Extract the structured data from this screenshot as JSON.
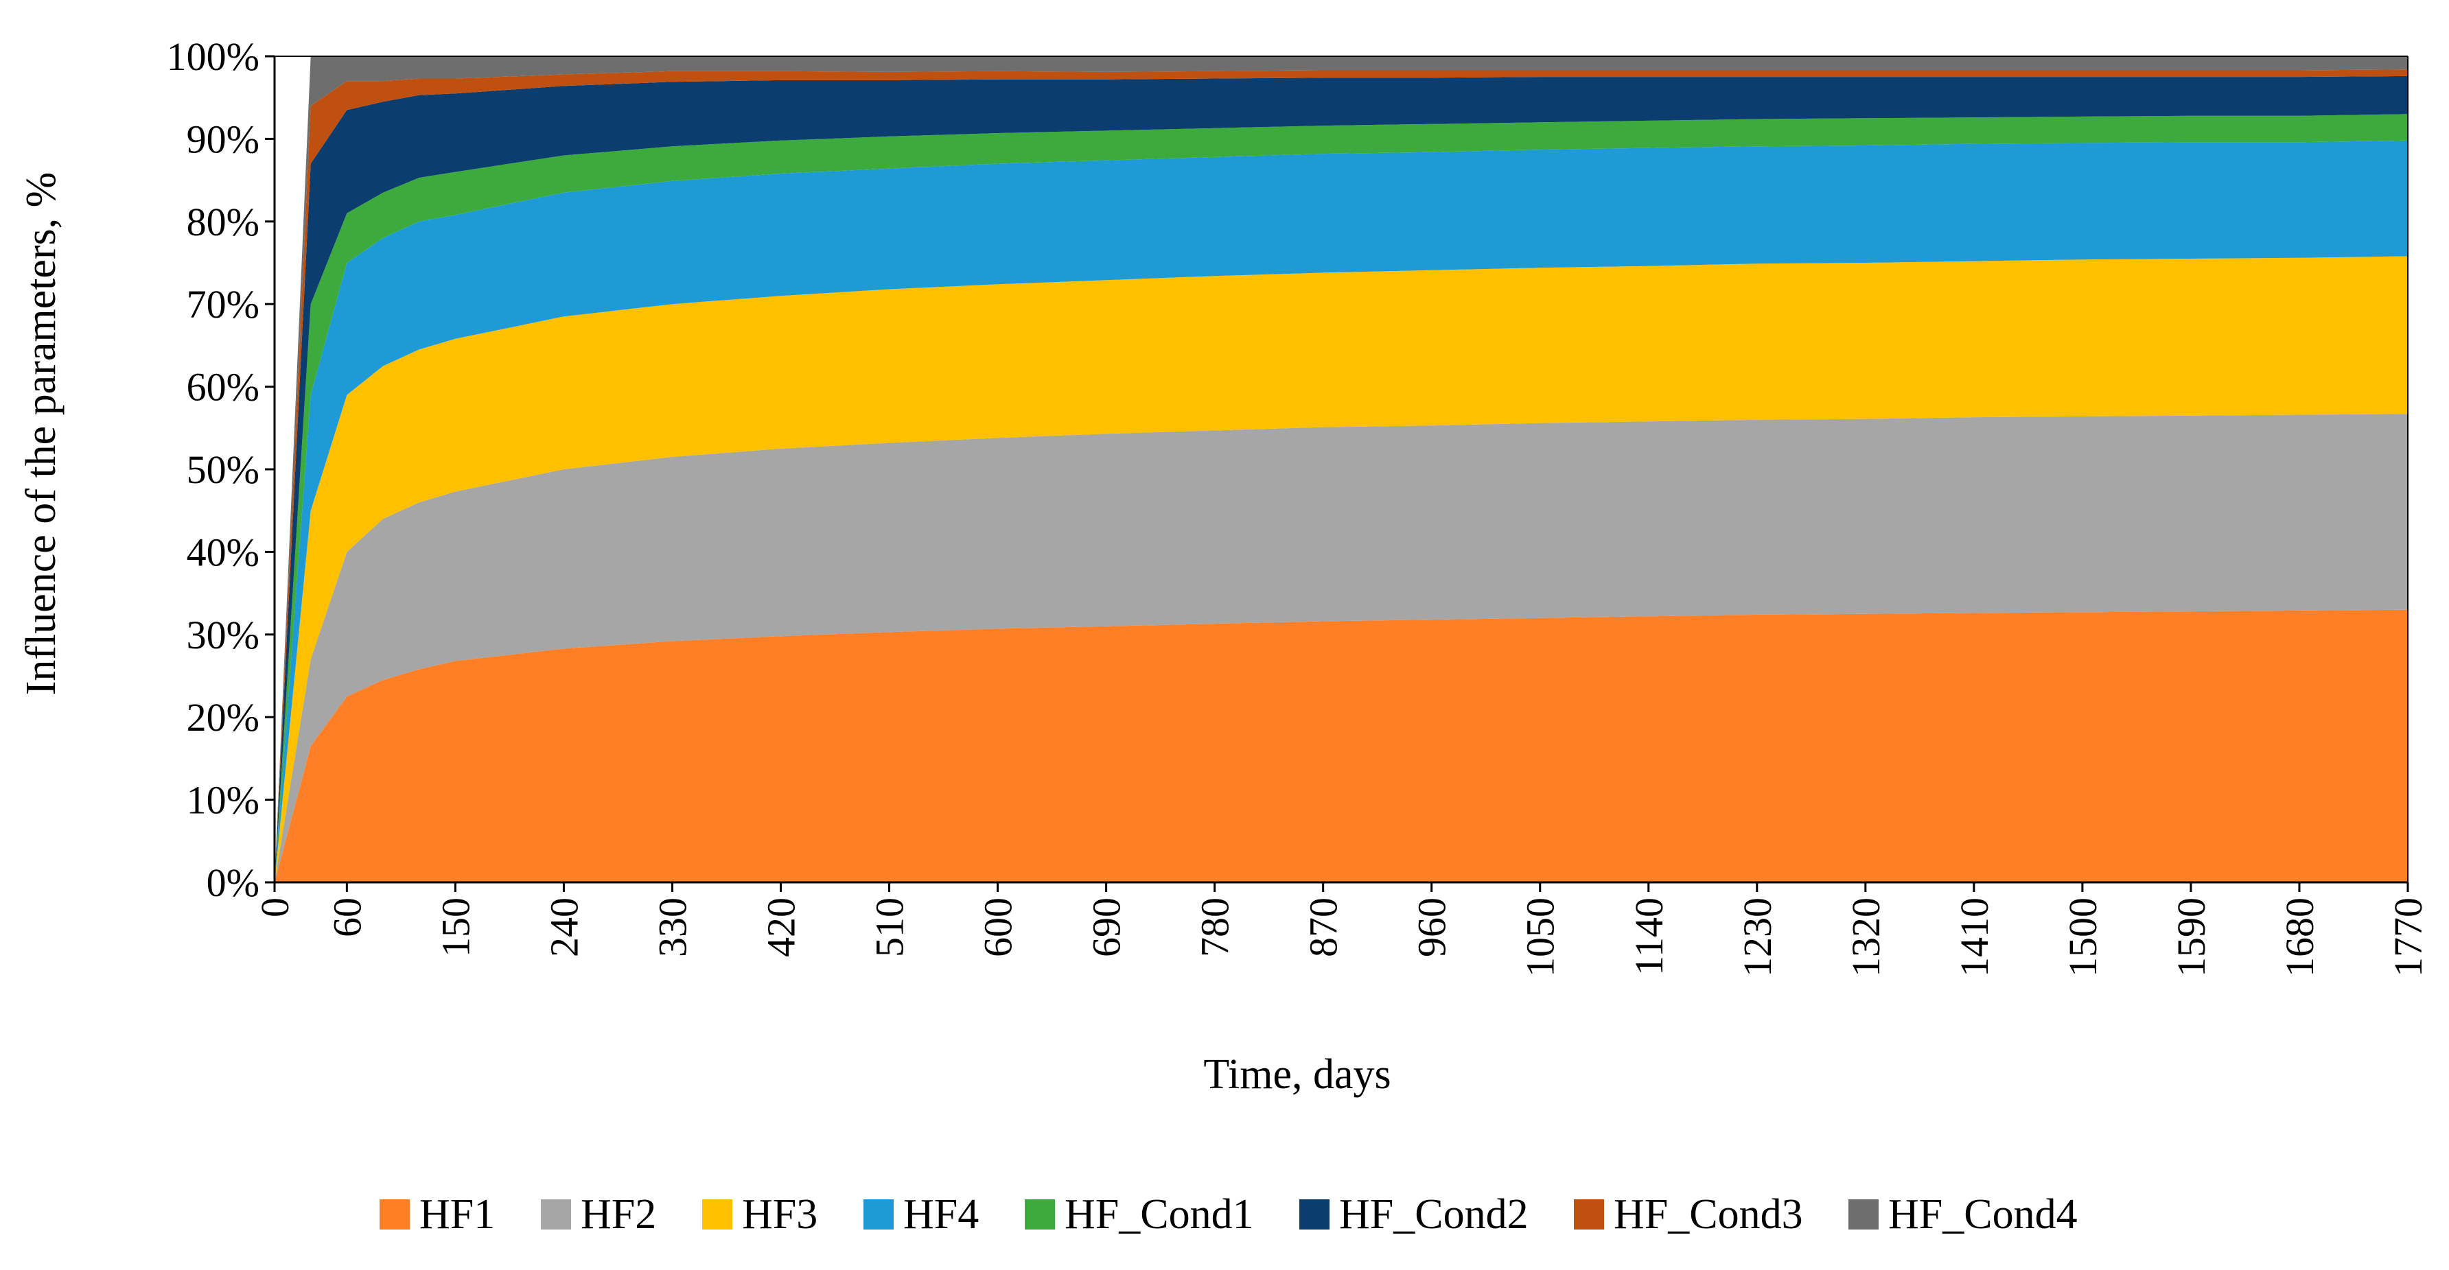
{
  "chart_data": {
    "type": "area",
    "stacked": true,
    "normalized_percent": true,
    "title": "",
    "xlabel": "Time, days",
    "ylabel": "Influence of the parameters, %",
    "x_tick_labels": [
      "0",
      "60",
      "150",
      "240",
      "330",
      "420",
      "510",
      "600",
      "690",
      "780",
      "870",
      "960",
      "1050",
      "1140",
      "1230",
      "1320",
      "1410",
      "1500",
      "1590",
      "1680",
      "1770"
    ],
    "x_tick_values": [
      0,
      60,
      150,
      240,
      330,
      420,
      510,
      600,
      690,
      780,
      870,
      960,
      1050,
      1140,
      1230,
      1320,
      1410,
      1500,
      1590,
      1680,
      1770
    ],
    "y_tick_labels": [
      "0%",
      "10%",
      "20%",
      "30%",
      "40%",
      "50%",
      "60%",
      "70%",
      "80%",
      "90%",
      "100%"
    ],
    "xlim": [
      0,
      1770
    ],
    "ylim": [
      0,
      100
    ],
    "legend_position": "bottom",
    "x": [
      0,
      30,
      60,
      90,
      120,
      150,
      240,
      330,
      420,
      510,
      600,
      690,
      780,
      870,
      960,
      1050,
      1140,
      1230,
      1320,
      1410,
      1500,
      1590,
      1680,
      1770
    ],
    "series": [
      {
        "name": "HF1",
        "color": "#FF7F27",
        "values": [
          0,
          16.5,
          22.5,
          24.5,
          25.8,
          26.8,
          28.3,
          29.2,
          29.8,
          30.3,
          30.7,
          31.0,
          31.3,
          31.6,
          31.8,
          32.0,
          32.2,
          32.4,
          32.5,
          32.6,
          32.7,
          32.8,
          32.9,
          33.0
        ]
      },
      {
        "name": "HF2",
        "color": "#A6A6A6",
        "values": [
          0,
          10.5,
          17.5,
          19.5,
          20.2,
          20.5,
          21.7,
          22.3,
          22.7,
          22.9,
          23.1,
          23.3,
          23.4,
          23.5,
          23.5,
          23.6,
          23.6,
          23.6,
          23.6,
          23.7,
          23.7,
          23.7,
          23.7,
          23.7
        ]
      },
      {
        "name": "HF3",
        "color": "#FFC000",
        "values": [
          0,
          18.0,
          19.0,
          18.5,
          18.5,
          18.5,
          18.5,
          18.5,
          18.5,
          18.6,
          18.6,
          18.6,
          18.7,
          18.7,
          18.8,
          18.8,
          18.8,
          18.9,
          18.9,
          18.9,
          19.0,
          19.0,
          19.0,
          19.1
        ]
      },
      {
        "name": "HF4",
        "color": "#1E9BD7",
        "values": [
          0,
          14.0,
          16.0,
          15.5,
          15.5,
          15.0,
          15.0,
          14.9,
          14.8,
          14.6,
          14.6,
          14.5,
          14.4,
          14.4,
          14.3,
          14.3,
          14.3,
          14.2,
          14.2,
          14.2,
          14.1,
          14.1,
          14.0,
          14.0
        ]
      },
      {
        "name": "HF_Cond1",
        "color": "#3DAA3D",
        "values": [
          0,
          11.0,
          6.0,
          5.5,
          5.3,
          5.2,
          4.5,
          4.2,
          4.0,
          3.9,
          3.7,
          3.6,
          3.5,
          3.4,
          3.4,
          3.3,
          3.3,
          3.3,
          3.3,
          3.2,
          3.2,
          3.2,
          3.2,
          3.2
        ]
      },
      {
        "name": "HF_Cond2",
        "color": "#0B3D6E",
        "values": [
          0,
          17.0,
          12.5,
          11.0,
          10.0,
          9.5,
          8.4,
          7.8,
          7.3,
          6.8,
          6.5,
          6.2,
          6.0,
          5.8,
          5.6,
          5.5,
          5.3,
          5.1,
          5.0,
          4.9,
          4.8,
          4.7,
          4.7,
          4.6
        ]
      },
      {
        "name": "HF_Cond3",
        "color": "#C0500F",
        "values": [
          0,
          7.0,
          3.5,
          2.5,
          2.0,
          1.8,
          1.4,
          1.3,
          1.1,
          1.0,
          1.0,
          0.9,
          0.9,
          0.9,
          0.9,
          0.8,
          0.8,
          0.8,
          0.8,
          0.8,
          0.8,
          0.8,
          0.8,
          0.8
        ]
      },
      {
        "name": "HF_Cond4",
        "color": "#6E6E6E",
        "values": [
          0,
          6.0,
          3.0,
          3.0,
          2.7,
          2.7,
          2.2,
          1.8,
          1.8,
          1.9,
          1.8,
          1.9,
          1.8,
          1.7,
          1.7,
          1.7,
          1.7,
          1.7,
          1.7,
          1.7,
          1.7,
          1.7,
          1.7,
          1.6
        ]
      }
    ]
  }
}
